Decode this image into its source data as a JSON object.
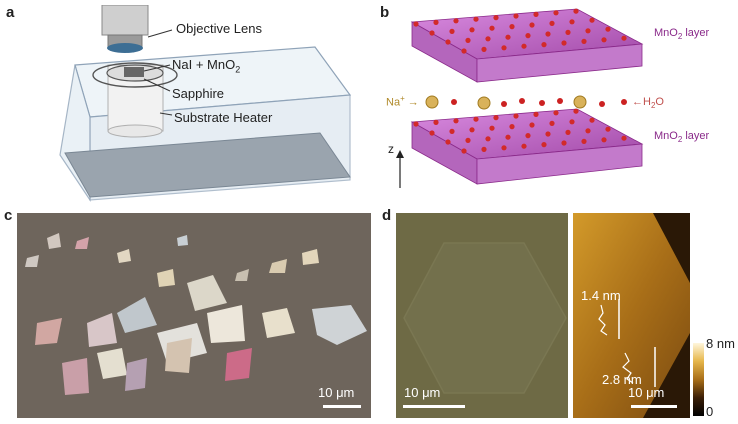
{
  "panels": {
    "a": {
      "letter": "a",
      "labels": {
        "objective": "Objective Lens",
        "precursor_main": "NaI + MnO",
        "precursor_sub": "2",
        "sapphire": "Sapphire",
        "heater": "Substrate Heater"
      }
    },
    "b": {
      "letter": "b",
      "layer_top_main": "MnO",
      "layer_top_sub": "2",
      "layer_top_rest": " layer",
      "layer_bottom_main": "MnO",
      "layer_bottom_sub": "2",
      "layer_bottom_rest": " layer",
      "na_label": "Na",
      "na_sup": "+",
      "h2o_main": "H",
      "h2o_sub": "2",
      "h2o_rest": "O",
      "axis": "z"
    },
    "c": {
      "letter": "c",
      "scalebar": "10 μm"
    },
    "d": {
      "letter": "d",
      "scalebar_left": "10 μm",
      "scalebar_right": "10 μm",
      "step1": "1.4 nm",
      "step2": "2.8 nm",
      "colorbar_max": "8 nm",
      "colorbar_min": "0"
    }
  },
  "colors": {
    "magenta": "#8a2a8a",
    "optical_bg": "#6e655c",
    "optical_d_bg": "#6e6a45",
    "afm_gold": "#b8801e"
  }
}
